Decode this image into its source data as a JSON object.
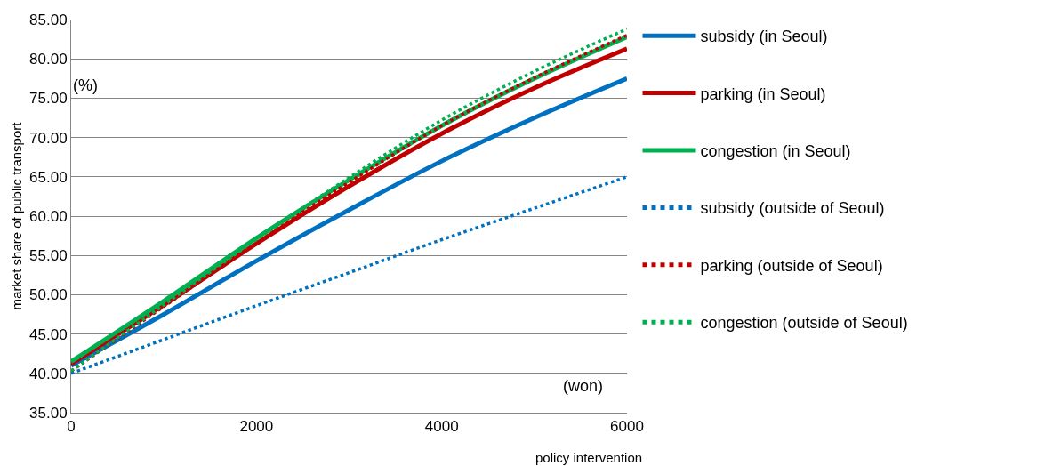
{
  "chart_data": {
    "type": "line",
    "xlabel": "policy intervention",
    "ylabel": "market share of public transport",
    "annotations": [
      "(%)",
      "(won)"
    ],
    "x": [
      0,
      1000,
      2000,
      3000,
      4000,
      5000,
      6000
    ],
    "xlim": [
      0,
      6000
    ],
    "xticks": [
      0,
      2000,
      4000,
      6000
    ],
    "ylim": [
      35,
      85
    ],
    "yticks": [
      {
        "value": 35,
        "label": "35.00"
      },
      {
        "value": 40,
        "label": "40.00"
      },
      {
        "value": 45,
        "label": "45.00"
      },
      {
        "value": 50,
        "label": "50.00"
      },
      {
        "value": 55,
        "label": "55.00"
      },
      {
        "value": 60,
        "label": "60.00"
      },
      {
        "value": 65,
        "label": "65.00"
      },
      {
        "value": 70,
        "label": "70.00"
      },
      {
        "value": 75,
        "label": "75.00"
      },
      {
        "value": 80,
        "label": "80.00"
      },
      {
        "value": 85,
        "label": "85.00"
      }
    ],
    "grid": "y",
    "legend": "right",
    "marker": "none",
    "series": [
      {
        "name": "subsidy (in Seoul)",
        "color": "#0070c0",
        "line_style": "solid",
        "values": [
          41.0,
          47.5,
          54.3,
          60.8,
          67.0,
          72.5,
          77.5
        ]
      },
      {
        "name": "parking (in Seoul)",
        "color": "#c00000",
        "line_style": "solid",
        "values": [
          41.2,
          48.7,
          56.5,
          63.8,
          70.5,
          76.3,
          81.3
        ]
      },
      {
        "name": "congestion (in Seoul)",
        "color": "#00b050",
        "line_style": "solid",
        "values": [
          41.5,
          49.2,
          57.2,
          64.6,
          71.5,
          77.5,
          82.8
        ]
      },
      {
        "name": "subsidy (outside of Seoul)",
        "color": "#0070c0",
        "line_style": "dotted",
        "values": [
          40.0,
          44.3,
          48.6,
          52.8,
          57.0,
          61.0,
          65.0
        ]
      },
      {
        "name": "parking (outside of Seoul)",
        "color": "#c00000",
        "line_style": "dotted",
        "values": [
          40.3,
          48.5,
          56.6,
          64.3,
          71.5,
          77.6,
          83.0
        ]
      },
      {
        "name": "congestion (outside of Seoul)",
        "color": "#00b050",
        "line_style": "dotted",
        "values": [
          40.3,
          48.7,
          57.0,
          64.9,
          72.2,
          78.4,
          83.8
        ]
      }
    ]
  }
}
